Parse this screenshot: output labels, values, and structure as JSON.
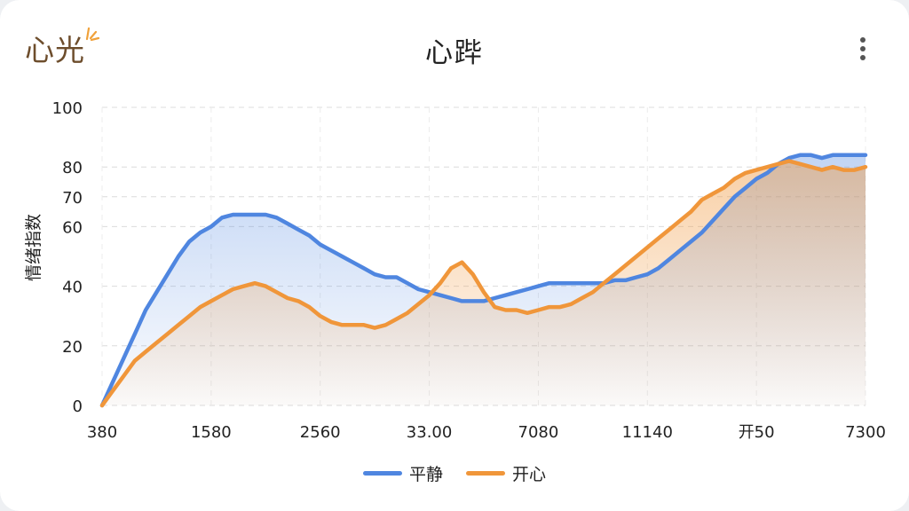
{
  "app": {
    "logo_text": "心光",
    "title": "心跸"
  },
  "colors": {
    "calm": "#4f86e0",
    "happy": "#f0963a",
    "grid": "#dcdcdc",
    "axis_text": "#222222",
    "logo": "#6d4d2c",
    "logo_rays": "#f0a13a"
  },
  "chart_data": {
    "type": "area",
    "ylabel": "情绪指数",
    "xlabel": "",
    "ylim": [
      0,
      100
    ],
    "yticks": [
      0,
      20,
      40,
      60,
      70,
      80,
      100
    ],
    "xticks": [
      "380",
      "1580",
      "2560",
      "33.00",
      "7080",
      "11140",
      "开50",
      "7300"
    ],
    "legend_position": "bottom-center",
    "grid": true,
    "x": [
      0,
      4,
      8,
      12,
      16,
      20,
      24,
      28,
      32,
      36,
      40,
      44,
      48,
      52,
      56,
      60,
      64,
      68,
      72,
      76,
      80,
      84,
      88,
      92,
      96,
      100,
      104,
      108,
      112,
      116,
      120,
      124,
      128,
      132,
      136,
      140,
      144,
      148,
      152,
      156,
      160,
      164,
      168,
      172,
      176,
      180,
      184,
      188,
      192,
      196,
      200,
      204,
      208,
      212,
      216,
      220,
      224,
      228,
      232,
      236,
      240,
      244,
      248,
      252,
      256,
      260,
      264,
      268,
      272,
      276,
      280
    ],
    "series": [
      {
        "name": "平静",
        "values": [
          0,
          8,
          16,
          24,
          32,
          38,
          44,
          50,
          55,
          58,
          60,
          63,
          64,
          64,
          64,
          64,
          63,
          61,
          59,
          57,
          54,
          52,
          50,
          48,
          46,
          44,
          43,
          43,
          41,
          39,
          38,
          37,
          36,
          35,
          35,
          35,
          36,
          37,
          38,
          39,
          40,
          41,
          41,
          41,
          41,
          41,
          41,
          42,
          42,
          43,
          44,
          46,
          49,
          52,
          55,
          58,
          62,
          66,
          70,
          73,
          76,
          78,
          81,
          83,
          84,
          84,
          83,
          84,
          84,
          84,
          84
        ]
      },
      {
        "name": "开心",
        "values": [
          0,
          5,
          10,
          15,
          18,
          21,
          24,
          27,
          30,
          33,
          35,
          37,
          39,
          40,
          41,
          40,
          38,
          36,
          35,
          33,
          30,
          28,
          27,
          27,
          27,
          26,
          27,
          29,
          31,
          34,
          37,
          41,
          46,
          48,
          44,
          38,
          33,
          32,
          32,
          31,
          32,
          33,
          33,
          34,
          36,
          38,
          41,
          44,
          47,
          50,
          53,
          56,
          59,
          62,
          65,
          69,
          71,
          73,
          76,
          78,
          79,
          80,
          81,
          82,
          81,
          80,
          79,
          80,
          79,
          79,
          80
        ]
      }
    ]
  },
  "menu": {
    "icon": "more-vertical-icon"
  }
}
